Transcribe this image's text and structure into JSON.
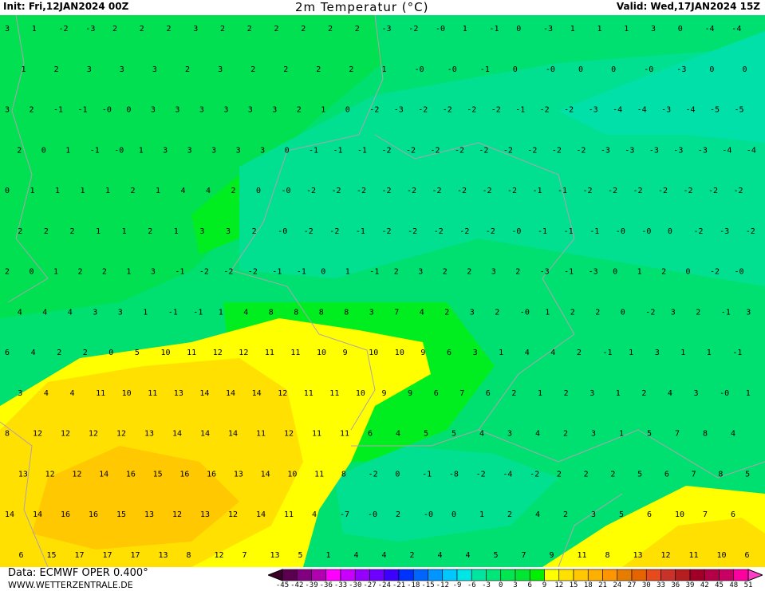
{
  "header": {
    "init": "Init: Fri,12JAN2024 00Z",
    "title": "2m Temperatur (°C)",
    "valid": "Valid: Wed,17JAN2024 15Z"
  },
  "footer": {
    "source": "Data: ECMWF  OPER  0.400°",
    "website": "WWW.WETTERZENTRALE.DE"
  },
  "legend": {
    "labels": [
      "-45",
      "-42",
      "-39",
      "-36",
      "-33",
      "-30",
      "-27",
      "-24",
      "-21",
      "-18",
      "-15",
      "-12",
      "-9",
      "-6",
      "-3",
      "0",
      "3",
      "6",
      "9",
      "12",
      "15",
      "18",
      "21",
      "24",
      "27",
      "30",
      "33",
      "36",
      "39",
      "42",
      "45",
      "48",
      "51"
    ],
    "colors": [
      "#5a004f",
      "#800080",
      "#b000b0",
      "#ff00ff",
      "#c800ff",
      "#9600ff",
      "#6e00ff",
      "#3c00ff",
      "#0032ff",
      "#0064ff",
      "#0096ff",
      "#00c8ff",
      "#00e6e6",
      "#00e6a0",
      "#00e678",
      "#00e650",
      "#00e632",
      "#00f000",
      "#ffff00",
      "#ffe100",
      "#ffc800",
      "#ffaf00",
      "#ff9600",
      "#e67d00",
      "#e66400",
      "#e64b1e",
      "#c83228",
      "#b41e1e",
      "#a00028",
      "#b40046",
      "#c80064",
      "#ff00a0"
    ],
    "under_color": "#3c0028",
    "over_color": "#ff3cc8"
  },
  "map": {
    "colors": {
      "band_0_3": "#00e070",
      "band_3_6": "#00e050",
      "band_neg3_0": "#00e090",
      "band_neg6_neg3": "#00e0a8",
      "band_6_9": "#00ee20",
      "band_9_12": "#ffff00",
      "band_12_15": "#ffe000",
      "band_15_18": "#ffc800",
      "borders": "#b0a0b0"
    },
    "values": [
      [
        "3",
        "1",
        "-2",
        "-3",
        "2",
        "2",
        "2",
        "3",
        "2",
        "2",
        "2",
        "2",
        "2",
        "2",
        "-3",
        "-2",
        "-0",
        "1",
        "-1",
        "0",
        "-3",
        "1",
        "1",
        "1",
        "3",
        "0",
        "-4",
        "-4"
      ],
      [
        "1",
        "2",
        "3",
        "3",
        "3",
        "2",
        "3",
        "2",
        "2",
        "2",
        "2",
        "1",
        "-0",
        "-0",
        "-1",
        "0",
        "-0",
        "0",
        "0",
        "-0",
        "-3",
        "0",
        "0"
      ],
      [
        "3",
        "2",
        "-1",
        "-1",
        "-0",
        "0",
        "3",
        "3",
        "3",
        "3",
        "3",
        "3",
        "2",
        "1",
        "0",
        "-2",
        "-3",
        "-2",
        "-2",
        "-2",
        "-2",
        "-1",
        "-2",
        "-2",
        "-3",
        "-4",
        "-4",
        "-3",
        "-4",
        "-5",
        "-5"
      ],
      [
        "2",
        "0",
        "1",
        "-1",
        "-0",
        "1",
        "3",
        "3",
        "3",
        "3",
        "3",
        "0",
        "-1",
        "-1",
        "-1",
        "-2",
        "-2",
        "-2",
        "-2",
        "-2",
        "-2",
        "-2",
        "-2",
        "-2",
        "-3",
        "-3",
        "-3",
        "-3",
        "-3",
        "-4",
        "-4"
      ],
      [
        "0",
        "1",
        "1",
        "1",
        "1",
        "2",
        "1",
        "4",
        "4",
        "2",
        "0",
        "-0",
        "-2",
        "-2",
        "-2",
        "-2",
        "-2",
        "-2",
        "-2",
        "-2",
        "-2",
        "-1",
        "-1",
        "-2",
        "-2",
        "-2",
        "-2",
        "-2",
        "-2",
        "-2"
      ],
      [
        "2",
        "2",
        "2",
        "1",
        "1",
        "2",
        "1",
        "3",
        "3",
        "2",
        "-0",
        "-2",
        "-2",
        "-1",
        "-2",
        "-2",
        "-2",
        "-2",
        "-2",
        "-0",
        "-1",
        "-1",
        "-1",
        "-0",
        "-0",
        "0",
        "-2",
        "-3",
        "-2"
      ],
      [
        "2",
        "0",
        "1",
        "2",
        "2",
        "1",
        "3",
        "-1",
        "-2",
        "-2",
        "-2",
        "-1",
        "-1",
        "0",
        "1",
        "-1",
        "2",
        "3",
        "2",
        "2",
        "3",
        "2",
        "-3",
        "-1",
        "-3",
        "0",
        "1",
        "2",
        "0",
        "-2",
        "-0"
      ],
      [
        "4",
        "4",
        "4",
        "3",
        "3",
        "1",
        "-1",
        "-1",
        "1",
        "4",
        "8",
        "8",
        "8",
        "8",
        "3",
        "7",
        "4",
        "2",
        "3",
        "2",
        "-0",
        "1",
        "2",
        "2",
        "0",
        "-2",
        "3",
        "2",
        "-1",
        "3"
      ],
      [
        "6",
        "4",
        "2",
        "2",
        "0",
        "5",
        "10",
        "11",
        "12",
        "12",
        "11",
        "11",
        "10",
        "9",
        "10",
        "10",
        "9",
        "6",
        "3",
        "1",
        "4",
        "4",
        "2",
        "-1",
        "1",
        "3",
        "1",
        "1",
        "-1"
      ],
      [
        "3",
        "4",
        "4",
        "11",
        "10",
        "11",
        "13",
        "14",
        "14",
        "14",
        "12",
        "11",
        "11",
        "10",
        "9",
        "9",
        "6",
        "7",
        "6",
        "2",
        "1",
        "2",
        "3",
        "1",
        "2",
        "4",
        "3",
        "-0",
        "1"
      ],
      [
        "8",
        "12",
        "12",
        "12",
        "12",
        "13",
        "14",
        "14",
        "14",
        "11",
        "12",
        "11",
        "11",
        "6",
        "4",
        "5",
        "5",
        "4",
        "3",
        "4",
        "2",
        "3",
        "1",
        "5",
        "7",
        "8",
        "4"
      ],
      [
        "13",
        "12",
        "12",
        "14",
        "16",
        "15",
        "16",
        "16",
        "13",
        "14",
        "10",
        "11",
        "8",
        "-2",
        "0",
        "-1",
        "-8",
        "-2",
        "-4",
        "-2",
        "2",
        "2",
        "2",
        "5",
        "6",
        "7",
        "8",
        "5"
      ],
      [
        "14",
        "14",
        "16",
        "16",
        "15",
        "13",
        "12",
        "13",
        "12",
        "14",
        "11",
        "4",
        "-7",
        "-0",
        "2",
        "-0",
        "0",
        "1",
        "2",
        "4",
        "2",
        "3",
        "5",
        "6",
        "10",
        "7",
        "6"
      ],
      [
        "6",
        "15",
        "17",
        "17",
        "17",
        "13",
        "8",
        "12",
        "7",
        "13",
        "5",
        "1",
        "4",
        "4",
        "2",
        "4",
        "4",
        "5",
        "7",
        "9",
        "11",
        "8",
        "13",
        "12",
        "11",
        "10",
        "6"
      ]
    ]
  }
}
